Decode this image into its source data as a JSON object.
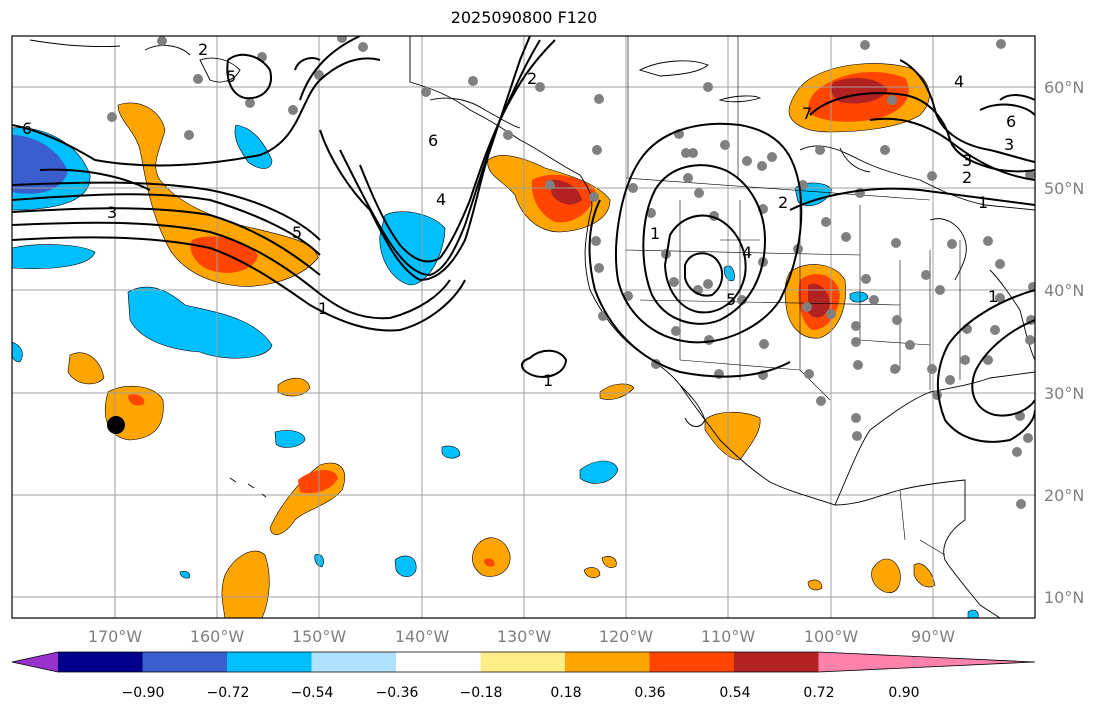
{
  "title": "2025090800 F120",
  "lat_labels": [
    "60°N",
    "50°N",
    "40°N",
    "30°N",
    "20°N",
    "10°N"
  ],
  "lon_labels": [
    "170°W",
    "160°W",
    "150°W",
    "140°W",
    "130°W",
    "120°W",
    "110°W",
    "100°W",
    "90°W"
  ],
  "colorbar": {
    "ticks": [
      "−0.90",
      "−0.72",
      "−0.54",
      "−0.36",
      "−0.18",
      "0.18",
      "0.36",
      "0.54",
      "0.72",
      "0.90"
    ],
    "colors": [
      "#9932cc",
      "#00008b",
      "#3a5fcd",
      "#00bfff",
      "#b0e2ff",
      "#ffffff",
      "#ffee88",
      "#ffa500",
      "#ff4500",
      "#b22222",
      "#ff82ab"
    ]
  },
  "contour_labels": [
    "6",
    "3",
    "5",
    "1",
    "5",
    "2",
    "6",
    "4",
    "2",
    "1",
    "7",
    "4",
    "3",
    "2",
    "6",
    "3",
    "2",
    "1",
    "1",
    "4",
    "5",
    "1"
  ],
  "colors": {
    "cool_deep": "#3a5fcd",
    "cool": "#00bfff",
    "warm": "#ffa500",
    "hot": "#ff4500",
    "hotter": "#b22222"
  }
}
